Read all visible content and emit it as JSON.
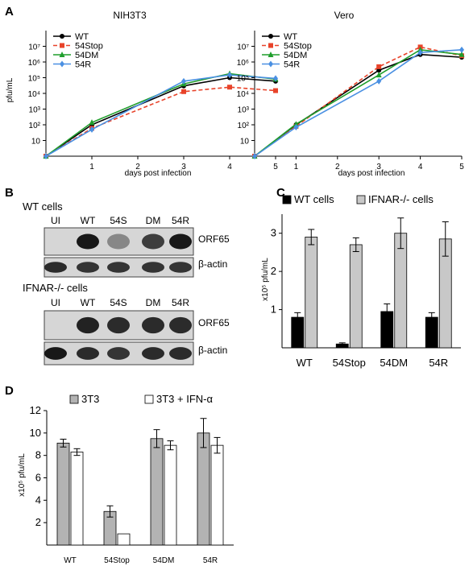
{
  "panels": [
    {
      "key": "A",
      "label": "A"
    },
    {
      "key": "B",
      "label": "B"
    },
    {
      "key": "C",
      "label": "C"
    },
    {
      "key": "D",
      "label": "D"
    }
  ],
  "blots": {
    "wt_heading": "WT cells",
    "ifnar_heading": "IFNAR-/- cells",
    "lanes": [
      "UI",
      "WT",
      "54S",
      "DM",
      "54R"
    ],
    "rows": [
      {
        "label": "ORF65",
        "intensities": [
          0.0,
          0.95,
          0.35,
          0.75,
          0.95
        ]
      },
      {
        "label": "β-actin",
        "intensities": [
          0.85,
          0.8,
          0.8,
          0.8,
          0.8
        ]
      },
      {
        "label": "ORF65",
        "intensities": [
          0.0,
          0.9,
          0.85,
          0.85,
          0.85
        ]
      },
      {
        "label": "β-actin",
        "intensities": [
          0.95,
          0.85,
          0.8,
          0.85,
          0.85
        ]
      }
    ]
  },
  "chart_data": [
    {
      "type": "line",
      "title": "NIH3T3",
      "xlabel": "days post infection",
      "ylabel": "pfu/mL",
      "yscale": "log",
      "ylim": [
        1,
        100000000
      ],
      "xlim": [
        0,
        5
      ],
      "x_ticks": [
        "1",
        "2",
        "3",
        "4",
        "5"
      ],
      "y_ticks": [
        "10",
        "10²",
        "10³",
        "10⁴",
        "10⁵",
        "10⁶",
        "10⁷"
      ],
      "y_tick_values": [
        10,
        100,
        1000,
        10000,
        100000,
        1000000,
        10000000
      ],
      "legend_position": "top-left",
      "x": [
        0,
        1,
        3,
        4,
        5
      ],
      "series": [
        {
          "name": "WT",
          "color": "#000000",
          "marker": "circle",
          "dash": false,
          "values": [
            1,
            100,
            30000,
            100000,
            60000
          ]
        },
        {
          "name": "54Stop",
          "color": "#e8432a",
          "marker": "square",
          "dash": true,
          "values": [
            1,
            60,
            13000,
            25000,
            15000
          ]
        },
        {
          "name": "54DM",
          "color": "#1f9e2c",
          "marker": "triangle",
          "dash": false,
          "values": [
            1,
            140,
            40000,
            180000,
            80000
          ]
        },
        {
          "name": "54R",
          "color": "#4a90e2",
          "marker": "diamond",
          "dash": false,
          "values": [
            1,
            50,
            60000,
            150000,
            90000
          ]
        }
      ]
    },
    {
      "type": "line",
      "title": "Vero",
      "xlabel": "days post infection",
      "ylabel": "",
      "yscale": "log",
      "ylim": [
        1,
        100000000
      ],
      "xlim": [
        0,
        5
      ],
      "x_ticks": [
        "1",
        "2",
        "3",
        "4",
        "5"
      ],
      "y_ticks": [
        "10",
        "10²",
        "10³",
        "10⁴",
        "10⁵",
        "10⁶",
        "10⁷"
      ],
      "y_tick_values": [
        10,
        100,
        1000,
        10000,
        100000,
        1000000,
        10000000
      ],
      "legend_position": "top-left",
      "x": [
        0,
        1,
        3,
        4,
        5
      ],
      "series": [
        {
          "name": "WT",
          "color": "#000000",
          "marker": "circle",
          "dash": false,
          "values": [
            1,
            100,
            300000,
            3000000,
            2000000
          ]
        },
        {
          "name": "54Stop",
          "color": "#e8432a",
          "marker": "square",
          "dash": true,
          "values": [
            1,
            80,
            500000,
            9000000,
            2500000
          ]
        },
        {
          "name": "54DM",
          "color": "#1f9e2c",
          "marker": "triangle",
          "dash": false,
          "values": [
            1,
            110,
            150000,
            6000000,
            3000000
          ]
        },
        {
          "name": "54R",
          "color": "#4a90e2",
          "marker": "diamond",
          "dash": false,
          "values": [
            1,
            70,
            60000,
            4000000,
            6000000
          ]
        }
      ]
    },
    {
      "type": "bar",
      "title": "",
      "xlabel": "",
      "ylabel": "x10⁵ pfu/mL",
      "ylim": [
        0,
        3.5
      ],
      "y_ticks": [
        1,
        2,
        3
      ],
      "legend_position": "top",
      "categories": [
        "WT",
        "54Stop",
        "54DM",
        "54R"
      ],
      "series": [
        {
          "name": "WT cells",
          "color": "#000000",
          "values": [
            0.8,
            0.1,
            0.95,
            0.8
          ],
          "errors": [
            0.12,
            0.03,
            0.2,
            0.12
          ]
        },
        {
          "name": "IFNAR-/- cells",
          "color": "#c8c8c8",
          "values": [
            2.9,
            2.7,
            3.0,
            2.85
          ],
          "errors": [
            0.2,
            0.18,
            0.4,
            0.45
          ]
        }
      ]
    },
    {
      "type": "bar",
      "title": "",
      "xlabel": "",
      "ylabel": "x10⁵ pfu/mL",
      "ylim": [
        0,
        12
      ],
      "y_ticks": [
        2,
        4,
        6,
        8,
        10,
        12
      ],
      "legend_position": "top",
      "categories": [
        "WT",
        "54Stop",
        "54DM",
        "54R"
      ],
      "series": [
        {
          "name": "3T3",
          "color": "#b3b3b3",
          "values": [
            9.1,
            3.0,
            9.5,
            10.0
          ],
          "errors": [
            0.35,
            0.5,
            0.8,
            1.3
          ]
        },
        {
          "name": "3T3 + IFN-α",
          "color": "#ffffff",
          "values": [
            8.3,
            1.0,
            8.9,
            8.9
          ],
          "errors": [
            0.3,
            0.0,
            0.4,
            0.7
          ]
        }
      ]
    }
  ]
}
